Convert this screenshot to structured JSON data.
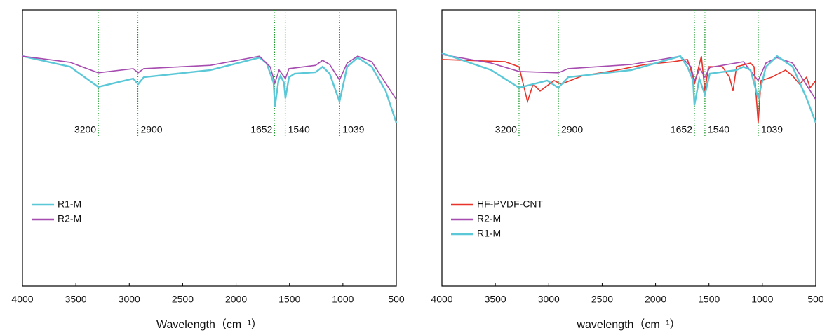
{
  "chart_data": [
    {
      "type": "line",
      "xlabel": "Wavelength（cm⁻¹）",
      "xlim": [
        4000,
        500
      ],
      "xticks": [
        4000,
        3500,
        3000,
        2500,
        2000,
        1500,
        1000,
        500
      ],
      "ylim": [
        0,
        100
      ],
      "legend": "center left",
      "annotations": [
        {
          "x": 3290,
          "label": "3200"
        },
        {
          "x": 2920,
          "label": "2900"
        },
        {
          "x": 1640,
          "label": "1652"
        },
        {
          "x": 1540,
          "label": "1540"
        },
        {
          "x": 1030,
          "label": "1039"
        }
      ],
      "series": [
        {
          "name": "R1-M",
          "color": "#5bc8d8",
          "x": [
            4000,
            3554,
            3291,
            2963,
            2917,
            2864,
            2240,
            1781,
            1715,
            1649,
            1636,
            1603,
            1584,
            1551,
            1538,
            1505,
            1452,
            1255,
            1190,
            1124,
            1032,
            960,
            861,
            730,
            599,
            500
          ],
          "values": [
            83.2,
            79.4,
            72.1,
            75.1,
            73.1,
            75.6,
            78.2,
            82.7,
            80.7,
            73.6,
            65.0,
            74.4,
            76.1,
            73.6,
            68.0,
            75.6,
            76.9,
            77.4,
            79.4,
            76.9,
            66.8,
            79.4,
            82.7,
            79.4,
            70.6,
            59.1
          ]
        },
        {
          "name": "R2-M",
          "color": "#a64bb0",
          "x": [
            4000,
            3554,
            3291,
            2963,
            2917,
            2864,
            2240,
            1781,
            1682,
            1636,
            1597,
            1538,
            1505,
            1255,
            1190,
            1124,
            1032,
            960,
            861,
            730,
            500
          ],
          "values": [
            83.2,
            81.0,
            77.2,
            78.7,
            77.2,
            78.7,
            79.9,
            83.2,
            79.4,
            73.6,
            78.2,
            75.1,
            78.7,
            79.9,
            81.7,
            80.2,
            74.6,
            80.7,
            83.2,
            81.2,
            67.5
          ]
        }
      ]
    },
    {
      "type": "line",
      "xlabel": "wavelength（cm⁻¹）",
      "xlim": [
        4000,
        500
      ],
      "xticks": [
        4000,
        3500,
        3000,
        2500,
        2000,
        1500,
        1000,
        500
      ],
      "ylim": [
        0,
        100
      ],
      "legend": "center left",
      "annotations": [
        {
          "x": 3278,
          "label": "3200"
        },
        {
          "x": 2910,
          "label": "2900"
        },
        {
          "x": 1636,
          "label": "1652"
        },
        {
          "x": 1538,
          "label": "1540"
        },
        {
          "x": 1039,
          "label": "1039"
        }
      ],
      "series": [
        {
          "name": "HF-PVDF-CNT",
          "color": "#e8332a",
          "x": [
            4000,
            3409,
            3278,
            3199,
            3146,
            3081,
            2950,
            2884,
            2687,
            2359,
            2096,
            1833,
            1702,
            1669,
            1636,
            1603,
            1571,
            1538,
            1505,
            1374,
            1308,
            1275,
            1242,
            1111,
            1078,
            1039,
            1012,
            914,
            783,
            717,
            652,
            586,
            553,
            500
          ],
          "values": [
            82.0,
            81.2,
            79.4,
            66.8,
            73.1,
            70.6,
            74.4,
            73.1,
            76.1,
            78.2,
            80.2,
            81.2,
            82.0,
            78.2,
            73.1,
            78.2,
            83.2,
            70.6,
            79.4,
            79.4,
            75.6,
            70.6,
            79.4,
            80.7,
            79.4,
            59.1,
            74.4,
            75.6,
            78.2,
            76.1,
            73.1,
            75.6,
            71.8,
            74.4
          ]
        },
        {
          "name": "R2-M",
          "color": "#a64bb0",
          "x": [
            4000,
            3540,
            3278,
            2910,
            2818,
            2227,
            1768,
            1669,
            1636,
            1584,
            1538,
            1492,
            1177,
            1039,
            967,
            862,
            717,
            500
          ],
          "values": [
            83.8,
            80.7,
            77.7,
            77.2,
            78.7,
            80.2,
            83.2,
            79.4,
            74.4,
            78.7,
            75.6,
            79.1,
            81.2,
            74.4,
            80.7,
            82.7,
            80.7,
            67.5
          ]
        },
        {
          "name": "R1-M",
          "color": "#5bc8d8",
          "x": [
            4000,
            3540,
            3278,
            3015,
            2910,
            2818,
            2227,
            1768,
            1702,
            1649,
            1636,
            1590,
            1538,
            1492,
            1242,
            1177,
            1111,
            1039,
            967,
            862,
            717,
            586,
            500
          ],
          "values": [
            84.3,
            78.2,
            71.8,
            74.4,
            71.8,
            75.6,
            78.2,
            83.2,
            79.4,
            74.4,
            65.5,
            75.1,
            69.3,
            76.9,
            78.2,
            79.4,
            78.2,
            68.0,
            79.4,
            83.2,
            79.4,
            68.0,
            59.1
          ]
        }
      ]
    }
  ]
}
